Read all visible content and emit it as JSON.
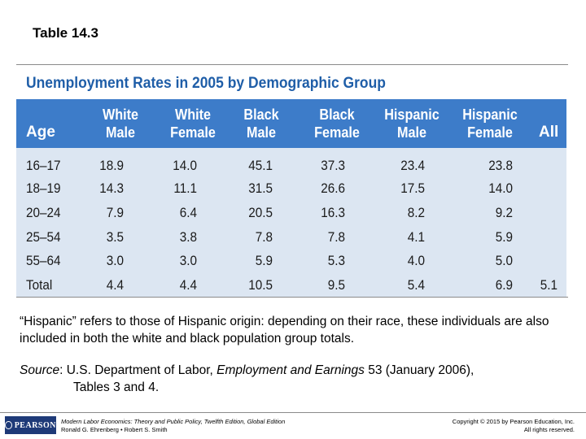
{
  "slide_title": "Table 14.3",
  "table": {
    "title": "Unemployment Rates in 2005 by Demographic Group",
    "age_header": "Age",
    "all_header": "All",
    "column_headers": [
      {
        "line1": "White",
        "line2": "Male"
      },
      {
        "line1": "White",
        "line2": "Female"
      },
      {
        "line1": "Black",
        "line2": "Male"
      },
      {
        "line1": "Black",
        "line2": "Female"
      },
      {
        "line1": "Hispanic",
        "line2": "Male"
      },
      {
        "line1": "Hispanic",
        "line2": "Female"
      }
    ],
    "rows": [
      {
        "age": "16–17",
        "values": [
          "18.9",
          "14.0",
          "45.1",
          "37.3",
          "23.4",
          "23.8"
        ],
        "all": ""
      },
      {
        "age": "18–19",
        "values": [
          "14.3",
          "11.1",
          "31.5",
          "26.6",
          "17.5",
          "14.0"
        ],
        "all": ""
      },
      {
        "age": "20–24",
        "values": [
          "7.9",
          "6.4",
          "20.5",
          "16.3",
          "8.2",
          "9.2"
        ],
        "all": ""
      },
      {
        "age": "25–54",
        "values": [
          "3.5",
          "3.8",
          "7.8",
          "7.8",
          "4.1",
          "5.9"
        ],
        "all": ""
      },
      {
        "age": "55–64",
        "values": [
          "3.0",
          "3.0",
          "5.9",
          "5.3",
          "4.0",
          "5.0"
        ],
        "all": ""
      },
      {
        "age": "Total",
        "values": [
          "4.4",
          "4.4",
          "10.5",
          "9.5",
          "5.4",
          "6.9"
        ],
        "all": "5.1"
      }
    ]
  },
  "note": "“Hispanic” refers to those of Hispanic origin:  depending on their race, these individuals are also included in both the white and black population group totals.",
  "source": {
    "label": "Source",
    "text_before": ": U.S. Department of Labor, ",
    "publication": "Employment and Earnings",
    "text_after": " 53 (January 2006),",
    "line2": "Tables 3 and 4."
  },
  "footer": {
    "logo_text": "PEARSON",
    "book_title": "Modern Labor Economics: Theory and Public Policy, Twelfth Edition, Global Edition",
    "authors": "Ronald G. Ehrenberg • Robert S. Smith",
    "copyright": "Copyright © 2015 by Pearson Education, Inc.",
    "rights": "All rights reserved."
  }
}
